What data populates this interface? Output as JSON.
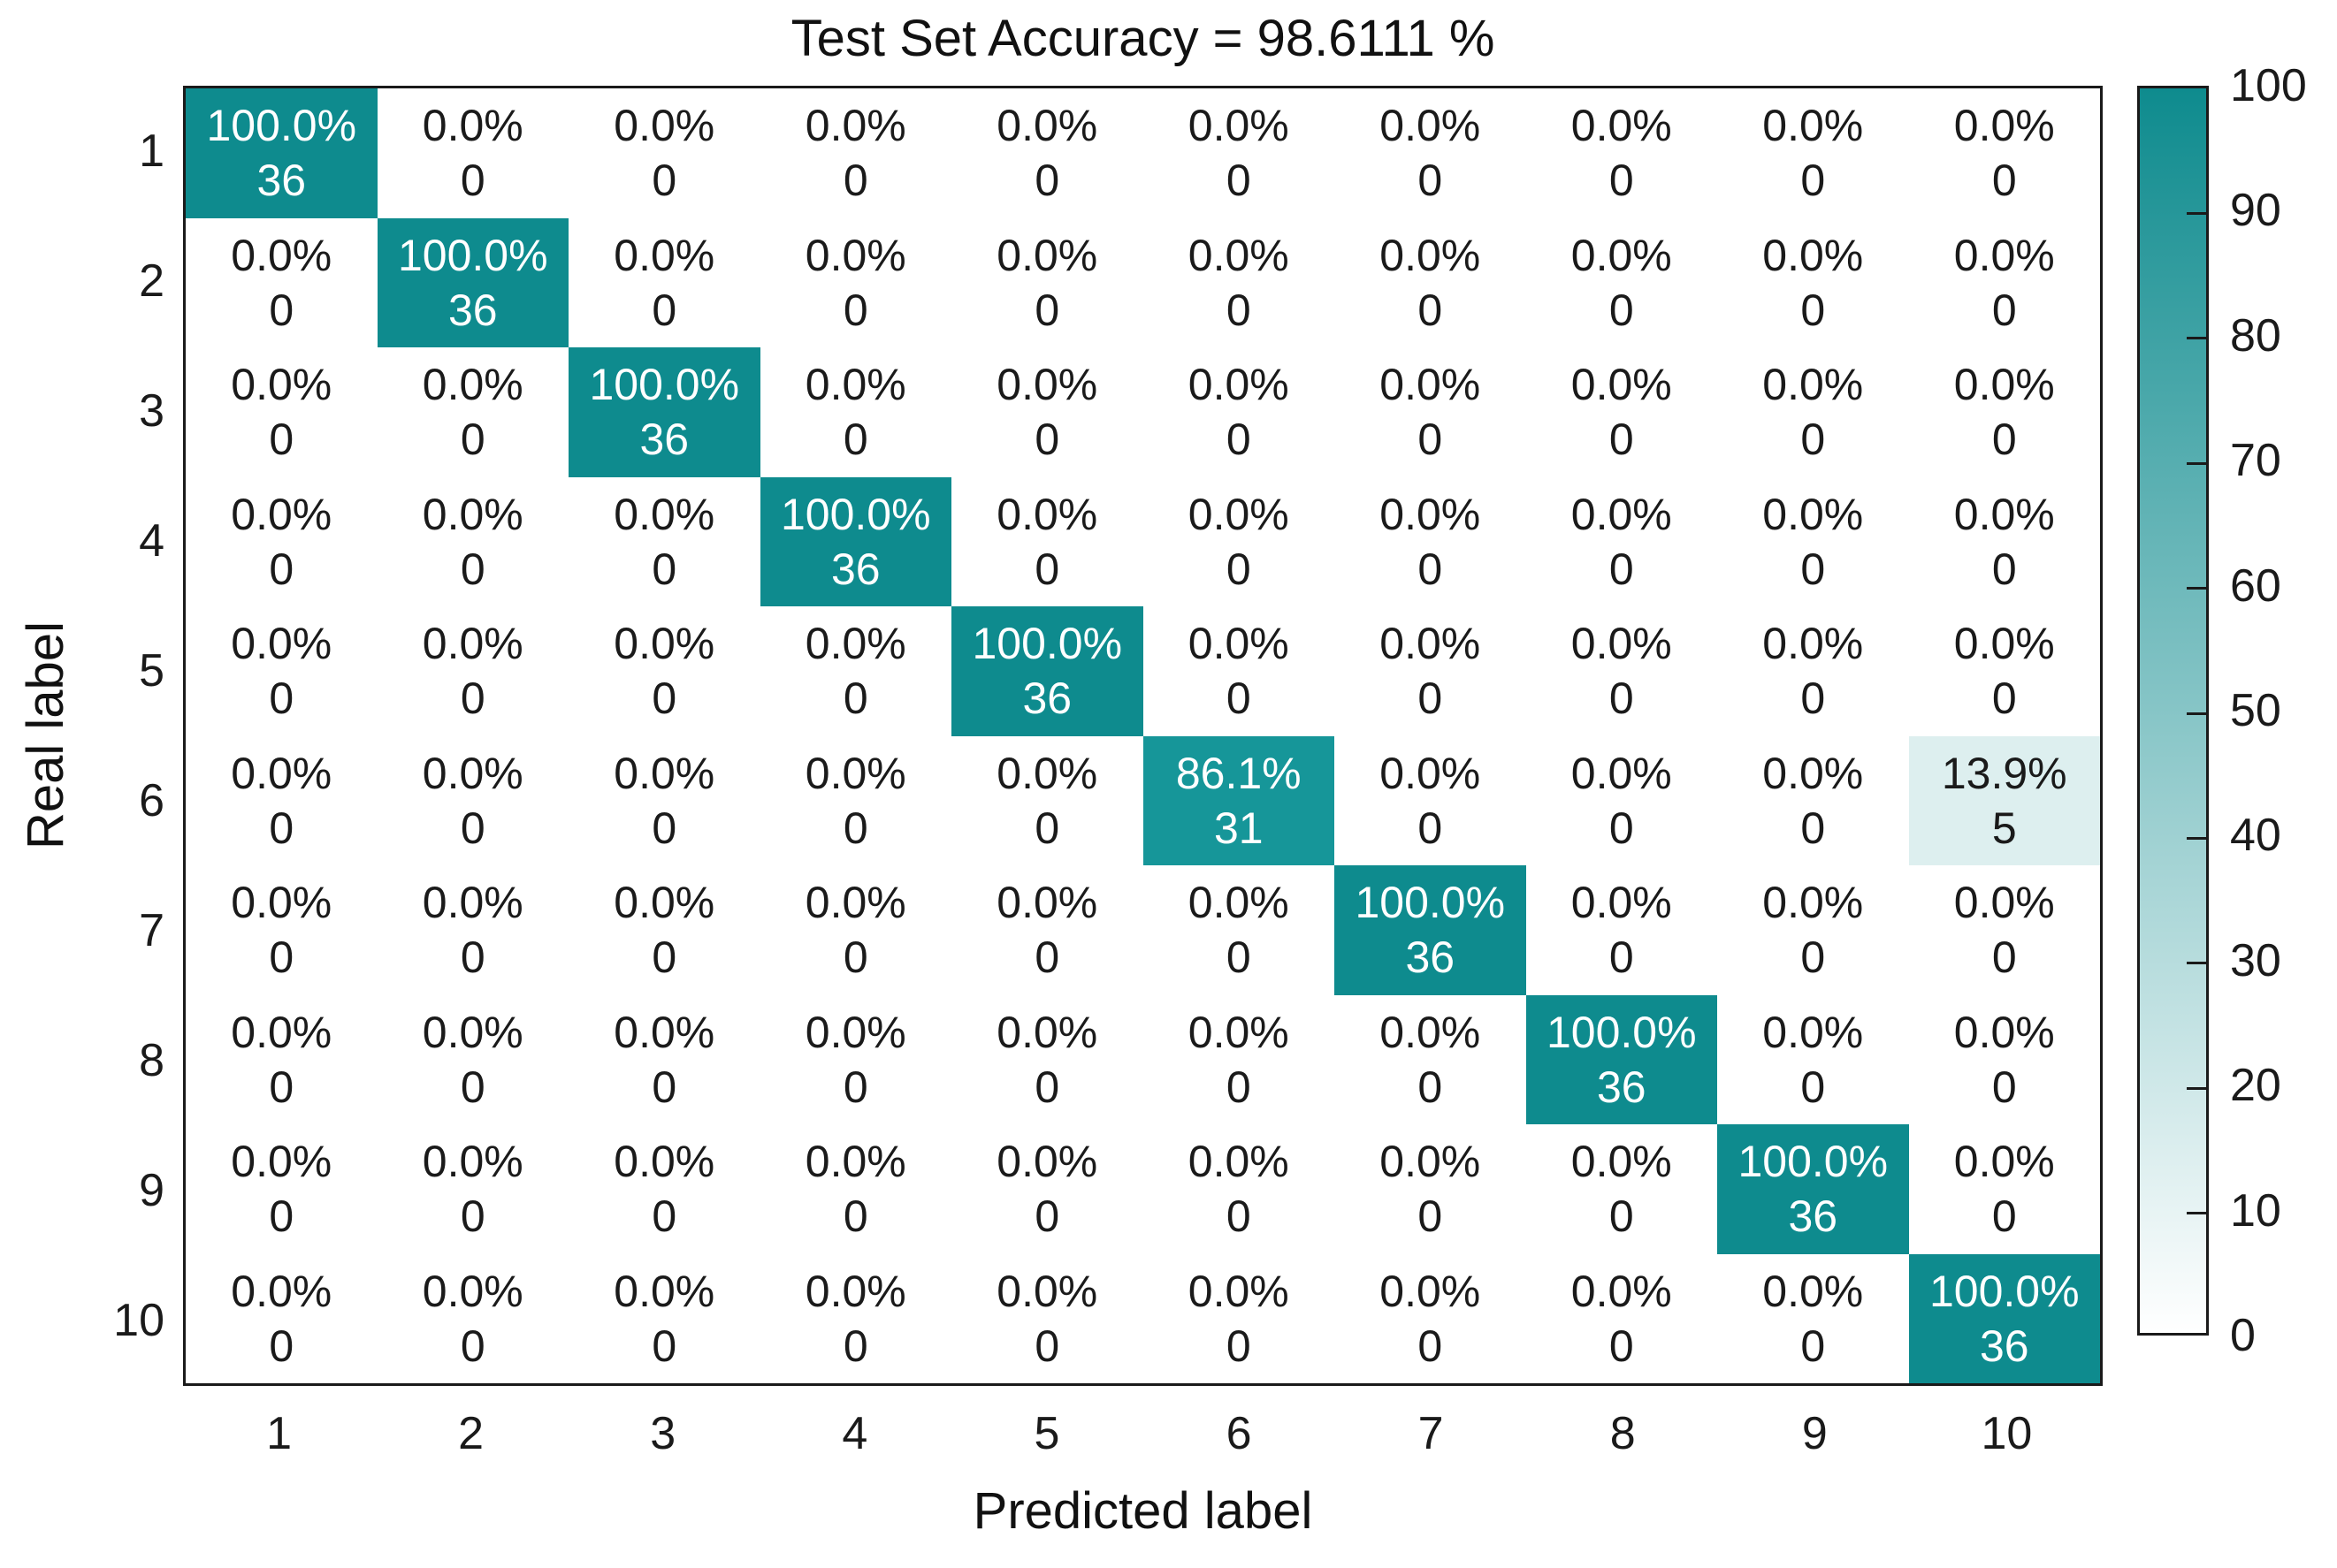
{
  "chart_data": {
    "type": "heatmap",
    "title": "Test Set Accuracy = 98.6111 %",
    "xlabel": "Predicted label",
    "ylabel": "Real label",
    "x_categories": [
      "1",
      "2",
      "3",
      "4",
      "5",
      "6",
      "7",
      "8",
      "9",
      "10"
    ],
    "y_categories": [
      "1",
      "2",
      "3",
      "4",
      "5",
      "6",
      "7",
      "8",
      "9",
      "10"
    ],
    "percents": [
      [
        100.0,
        0.0,
        0.0,
        0.0,
        0.0,
        0.0,
        0.0,
        0.0,
        0.0,
        0.0
      ],
      [
        0.0,
        100.0,
        0.0,
        0.0,
        0.0,
        0.0,
        0.0,
        0.0,
        0.0,
        0.0
      ],
      [
        0.0,
        0.0,
        100.0,
        0.0,
        0.0,
        0.0,
        0.0,
        0.0,
        0.0,
        0.0
      ],
      [
        0.0,
        0.0,
        0.0,
        100.0,
        0.0,
        0.0,
        0.0,
        0.0,
        0.0,
        0.0
      ],
      [
        0.0,
        0.0,
        0.0,
        0.0,
        100.0,
        0.0,
        0.0,
        0.0,
        0.0,
        0.0
      ],
      [
        0.0,
        0.0,
        0.0,
        0.0,
        0.0,
        86.1,
        0.0,
        0.0,
        0.0,
        13.9
      ],
      [
        0.0,
        0.0,
        0.0,
        0.0,
        0.0,
        0.0,
        100.0,
        0.0,
        0.0,
        0.0
      ],
      [
        0.0,
        0.0,
        0.0,
        0.0,
        0.0,
        0.0,
        0.0,
        100.0,
        0.0,
        0.0
      ],
      [
        0.0,
        0.0,
        0.0,
        0.0,
        0.0,
        0.0,
        0.0,
        0.0,
        100.0,
        0.0
      ],
      [
        0.0,
        0.0,
        0.0,
        0.0,
        0.0,
        0.0,
        0.0,
        0.0,
        0.0,
        100.0
      ]
    ],
    "counts": [
      [
        36,
        0,
        0,
        0,
        0,
        0,
        0,
        0,
        0,
        0
      ],
      [
        0,
        36,
        0,
        0,
        0,
        0,
        0,
        0,
        0,
        0
      ],
      [
        0,
        0,
        36,
        0,
        0,
        0,
        0,
        0,
        0,
        0
      ],
      [
        0,
        0,
        0,
        36,
        0,
        0,
        0,
        0,
        0,
        0
      ],
      [
        0,
        0,
        0,
        0,
        36,
        0,
        0,
        0,
        0,
        0
      ],
      [
        0,
        0,
        0,
        0,
        0,
        31,
        0,
        0,
        0,
        5
      ],
      [
        0,
        0,
        0,
        0,
        0,
        0,
        36,
        0,
        0,
        0
      ],
      [
        0,
        0,
        0,
        0,
        0,
        0,
        0,
        36,
        0,
        0
      ],
      [
        0,
        0,
        0,
        0,
        0,
        0,
        0,
        0,
        36,
        0
      ],
      [
        0,
        0,
        0,
        0,
        0,
        0,
        0,
        0,
        0,
        36
      ]
    ],
    "percent_suffix": "%",
    "colorbar": {
      "min": 0,
      "max": 100,
      "ticks": [
        0,
        10,
        20,
        30,
        40,
        50,
        60,
        70,
        80,
        90,
        100
      ],
      "position": "right"
    },
    "colors": {
      "high": "#0e8b8e",
      "low": "#ffffff",
      "value_overrides": {
        "86.1": "#169699",
        "13.9": "#ddefef"
      },
      "text_on_dark": "#ffffff",
      "text_on_light": "#1a1a1a",
      "axis": "#1a1a1a"
    },
    "legend": "none",
    "grid": "off"
  }
}
